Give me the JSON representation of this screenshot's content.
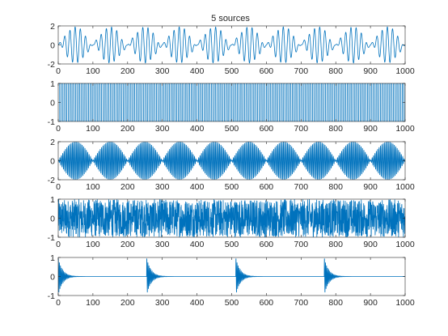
{
  "figure": {
    "background": "#ffffff"
  },
  "chart_data": [
    {
      "type": "line",
      "title": "5 sources",
      "xlabel": "",
      "ylabel": "",
      "xlim": [
        0,
        1000
      ],
      "ylim": [
        -2,
        2
      ],
      "xticks": [
        0,
        100,
        200,
        300,
        400,
        500,
        600,
        700,
        800,
        900,
        1000
      ],
      "yticks": [
        -2,
        0,
        2
      ],
      "color": "#0072BD",
      "signal": {
        "kind": "burst",
        "carrier_period": 15,
        "envelope_period": 100,
        "amplitude": 2
      }
    },
    {
      "type": "line",
      "title": "",
      "xlabel": "",
      "ylabel": "",
      "xlim": [
        0,
        1000
      ],
      "ylim": [
        -1,
        1
      ],
      "xticks": [
        0,
        100,
        200,
        300,
        400,
        500,
        600,
        700,
        800,
        900,
        1000
      ],
      "yticks": [
        -1,
        0,
        1
      ],
      "color": "#0072BD",
      "signal": {
        "kind": "square",
        "period": 8.33,
        "amplitude": 1
      }
    },
    {
      "type": "line",
      "title": "",
      "xlabel": "",
      "ylabel": "",
      "xlim": [
        0,
        1000
      ],
      "ylim": [
        -2,
        2
      ],
      "xticks": [
        0,
        100,
        200,
        300,
        400,
        500,
        600,
        700,
        800,
        900,
        1000
      ],
      "yticks": [
        -2,
        0,
        2
      ],
      "color": "#0072BD",
      "signal": {
        "kind": "am",
        "carrier_period": 4,
        "envelope_period": 100,
        "amplitude": 2
      }
    },
    {
      "type": "line",
      "title": "",
      "xlabel": "",
      "ylabel": "",
      "xlim": [
        0,
        1000
      ],
      "ylim": [
        -1,
        1
      ],
      "xticks": [
        0,
        100,
        200,
        300,
        400,
        500,
        600,
        700,
        800,
        900,
        1000
      ],
      "yticks": [
        -1,
        0,
        1
      ],
      "color": "#0072BD",
      "signal": {
        "kind": "noise",
        "amplitude": 1
      }
    },
    {
      "type": "line",
      "title": "",
      "xlabel": "",
      "ylabel": "",
      "xlim": [
        0,
        1000
      ],
      "ylim": [
        -1,
        1
      ],
      "xticks": [
        0,
        100,
        200,
        300,
        400,
        500,
        600,
        700,
        800,
        900,
        1000
      ],
      "yticks": [
        -1,
        0,
        1
      ],
      "color": "#0072BD",
      "signal": {
        "kind": "decay",
        "onsets": [
          0,
          255,
          512,
          767
        ],
        "carrier_period": 3,
        "decay": 12,
        "amplitude": 1
      }
    }
  ]
}
